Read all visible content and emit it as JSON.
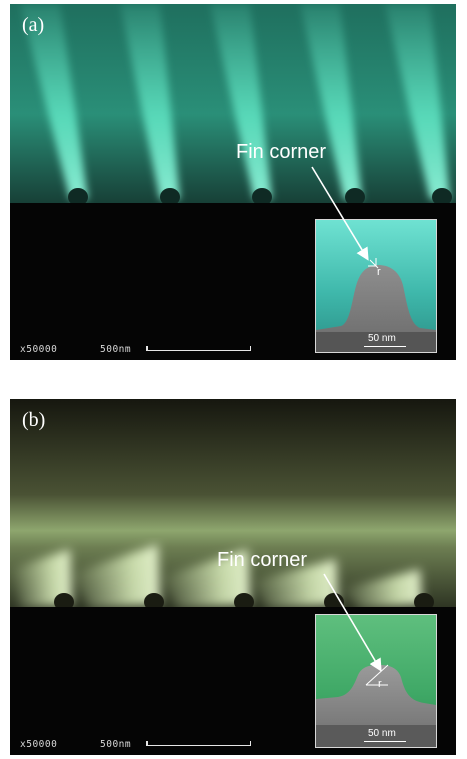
{
  "panels": [
    {
      "label": "(a)",
      "callout": "Fin corner",
      "magnification": "x50000",
      "scale_bar": "500nm",
      "inset_scale": "50 nm",
      "radius_label": "r",
      "tint_color": "#3fbfa0"
    },
    {
      "label": "(b)",
      "callout": "Fin corner",
      "magnification": "x50000",
      "scale_bar": "500nm",
      "inset_scale": "50 nm",
      "radius_label": "r",
      "tint_color": "#b8d49a"
    }
  ]
}
